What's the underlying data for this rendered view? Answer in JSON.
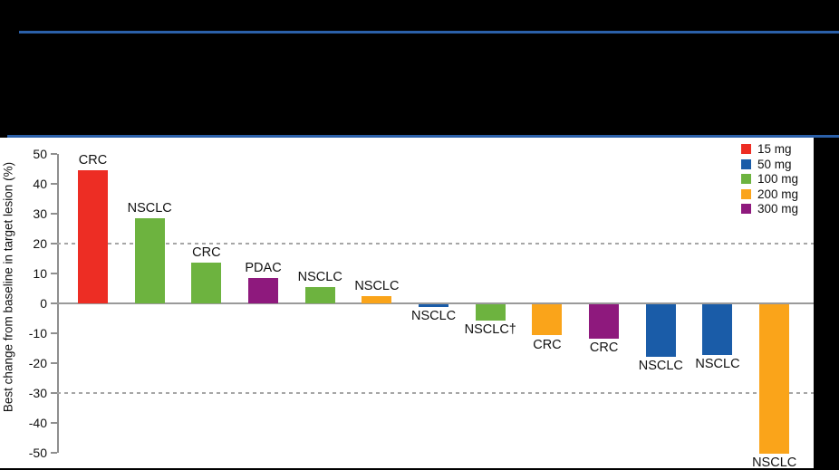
{
  "header": {
    "rule_color": "#2B60A9",
    "background_color": "#000000"
  },
  "chart_data": {
    "type": "bar",
    "variant": "waterfall",
    "title": "",
    "xlabel": "",
    "ylabel": "Best change from baseline in target lesion (%)",
    "ylim": [
      -50,
      50
    ],
    "yticks": [
      50,
      40,
      30,
      20,
      10,
      0,
      -10,
      -20,
      -30,
      -40,
      -50
    ],
    "reference_lines": [
      20,
      -30
    ],
    "grid": "horizontal dashed reference lines at +20 and -30 only",
    "legend_position": "top-right",
    "legend": [
      {
        "label": "15 mg",
        "color": "#ED2D24"
      },
      {
        "label": "50 mg",
        "color": "#1A5CA8"
      },
      {
        "label": "100 mg",
        "color": "#6DB33F"
      },
      {
        "label": "200 mg",
        "color": "#FAA41A"
      },
      {
        "label": "300 mg",
        "color": "#8E197D"
      }
    ],
    "bars": [
      {
        "label": "CRC",
        "dose": "15 mg",
        "value": 44.5
      },
      {
        "label": "NSCLC",
        "dose": "100 mg",
        "value": 28.5
      },
      {
        "label": "CRC",
        "dose": "100 mg",
        "value": 13.5
      },
      {
        "label": "PDAC",
        "dose": "300 mg",
        "value": 8.5
      },
      {
        "label": "NSCLC",
        "dose": "100 mg",
        "value": 5.5
      },
      {
        "label": "NSCLC",
        "dose": "200 mg",
        "value": 2.5
      },
      {
        "label": "NSCLC",
        "dose": "50 mg",
        "value": -1
      },
      {
        "label": "NSCLC†",
        "dose": "100 mg",
        "value": -5.5
      },
      {
        "label": "CRC",
        "dose": "200 mg",
        "value": -10.5
      },
      {
        "label": "CRC",
        "dose": "300 mg",
        "value": -11.5
      },
      {
        "label": "NSCLC",
        "dose": "50 mg",
        "value": -17.5
      },
      {
        "label": "NSCLC",
        "dose": "50 mg",
        "value": -17
      },
      {
        "label": "NSCLC",
        "dose": "200 mg",
        "value": -50
      }
    ],
    "axis_color": "#8f8f8f",
    "text_color": "#111111"
  }
}
